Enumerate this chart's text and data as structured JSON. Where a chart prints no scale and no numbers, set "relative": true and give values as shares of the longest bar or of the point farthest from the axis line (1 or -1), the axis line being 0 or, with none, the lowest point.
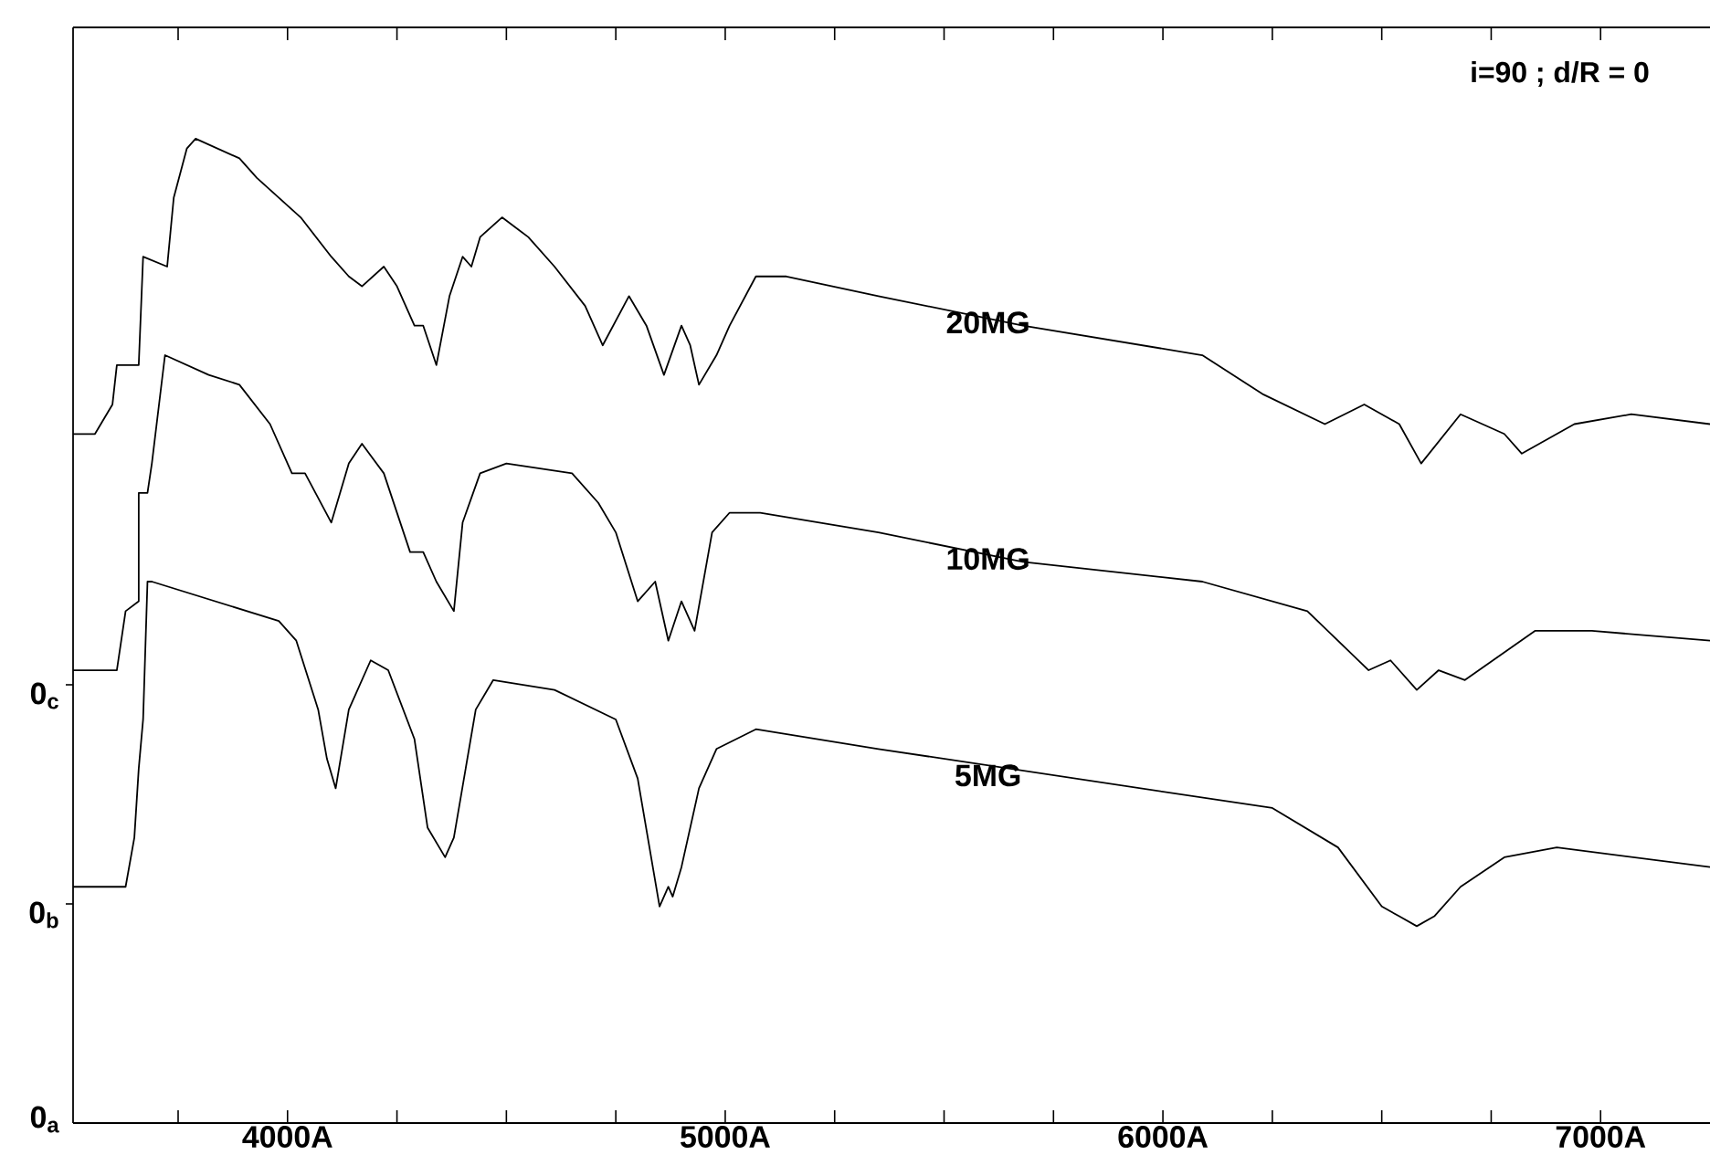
{
  "chart_data": {
    "type": "line",
    "relative": true,
    "line_style": "solid",
    "annotations": [
      "i=90 ; d/R = 0",
      "0$_{a}$",
      "0$_{b}$",
      "0$_{c}$"
    ],
    "xlim": [
      3510,
      7250
    ],
    "xticks": [
      {
        "value": 3750,
        "label": null
      },
      {
        "value": 4000,
        "label": "4000A"
      },
      {
        "value": 4250,
        "label": null
      },
      {
        "value": 4500,
        "label": null
      },
      {
        "value": 4750,
        "label": null
      },
      {
        "value": 5000,
        "label": "5000A"
      },
      {
        "value": 5250,
        "label": null
      },
      {
        "value": 5500,
        "label": null
      },
      {
        "value": 5750,
        "label": null
      },
      {
        "value": 6000,
        "label": "6000A"
      },
      {
        "value": 6250,
        "label": null
      },
      {
        "value": 6500,
        "label": null
      },
      {
        "value": 6750,
        "label": null
      },
      {
        "value": 7000,
        "label": "7000A"
      }
    ],
    "series": [
      {
        "name": "20MG",
        "color": "#000000",
        "x": [
          3510,
          3560,
          3600,
          3610,
          3660,
          3670,
          3725,
          3740,
          3770,
          3790,
          3890,
          3930,
          4030,
          4100,
          4140,
          4170,
          4220,
          4250,
          4290,
          4310,
          4340,
          4370,
          4400,
          4420,
          4440,
          4490,
          4550,
          4610,
          4680,
          4720,
          4780,
          4820,
          4860,
          4900,
          4920,
          4940,
          4980,
          5010,
          5070,
          5140,
          5350,
          5680,
          6090,
          6230,
          6370,
          6460,
          6540,
          6590,
          6680,
          6780,
          6820,
          6940,
          7070,
          7250
        ],
        "values": [
          0.7,
          0.7,
          0.73,
          0.77,
          0.77,
          0.88,
          0.87,
          0.94,
          0.99,
          1,
          0.98,
          0.96,
          0.92,
          0.88,
          0.86,
          0.85,
          0.87,
          0.85,
          0.81,
          0.81,
          0.77,
          0.84,
          0.88,
          0.87,
          0.9,
          0.92,
          0.9,
          0.87,
          0.83,
          0.79,
          0.84,
          0.81,
          0.76,
          0.81,
          0.79,
          0.75,
          0.78,
          0.81,
          0.86,
          0.86,
          0.84,
          0.81,
          0.78,
          0.74,
          0.71,
          0.73,
          0.71,
          0.67,
          0.72,
          0.7,
          0.68,
          0.71,
          0.72,
          0.71
        ]
      },
      {
        "name": "10MG",
        "color": "#000000",
        "x": [
          3510,
          3610,
          3630,
          3660,
          3660,
          3680,
          3690,
          3720,
          3820,
          3890,
          3960,
          4010,
          4040,
          4100,
          4140,
          4170,
          4220,
          4280,
          4310,
          4340,
          4380,
          4400,
          4440,
          4500,
          4650,
          4710,
          4750,
          4800,
          4840,
          4870,
          4900,
          4930,
          4970,
          5010,
          5080,
          5350,
          5680,
          6090,
          6330,
          6470,
          6520,
          6580,
          6630,
          6690,
          6850,
          6980,
          7250
        ],
        "values": [
          0.46,
          0.46,
          0.52,
          0.53,
          0.64,
          0.64,
          0.67,
          0.78,
          0.76,
          0.75,
          0.71,
          0.66,
          0.66,
          0.61,
          0.67,
          0.69,
          0.66,
          0.58,
          0.58,
          0.55,
          0.52,
          0.61,
          0.66,
          0.67,
          0.66,
          0.63,
          0.6,
          0.53,
          0.55,
          0.49,
          0.53,
          0.5,
          0.6,
          0.62,
          0.62,
          0.6,
          0.57,
          0.55,
          0.52,
          0.46,
          0.47,
          0.44,
          0.46,
          0.45,
          0.5,
          0.5,
          0.49
        ]
      },
      {
        "name": "5MG",
        "color": "#000000",
        "x": [
          3510,
          3630,
          3650,
          3660,
          3670,
          3680,
          3690,
          3980,
          4020,
          4070,
          4090,
          4110,
          4140,
          4190,
          4230,
          4290,
          4320,
          4360,
          4380,
          4430,
          4470,
          4610,
          4750,
          4800,
          4850,
          4870,
          4880,
          4900,
          4940,
          4980,
          5070,
          5350,
          6250,
          6400,
          6500,
          6540,
          6580,
          6620,
          6680,
          6780,
          6900,
          7250
        ],
        "values": [
          0.24,
          0.24,
          0.29,
          0.36,
          0.41,
          0.55,
          0.55,
          0.51,
          0.49,
          0.42,
          0.37,
          0.34,
          0.42,
          0.47,
          0.46,
          0.39,
          0.3,
          0.27,
          0.29,
          0.42,
          0.45,
          0.44,
          0.41,
          0.35,
          0.22,
          0.24,
          0.23,
          0.26,
          0.34,
          0.38,
          0.4,
          0.38,
          0.32,
          0.28,
          0.22,
          0.21,
          0.2,
          0.21,
          0.24,
          0.27,
          0.28,
          0.26
        ]
      }
    ]
  }
}
